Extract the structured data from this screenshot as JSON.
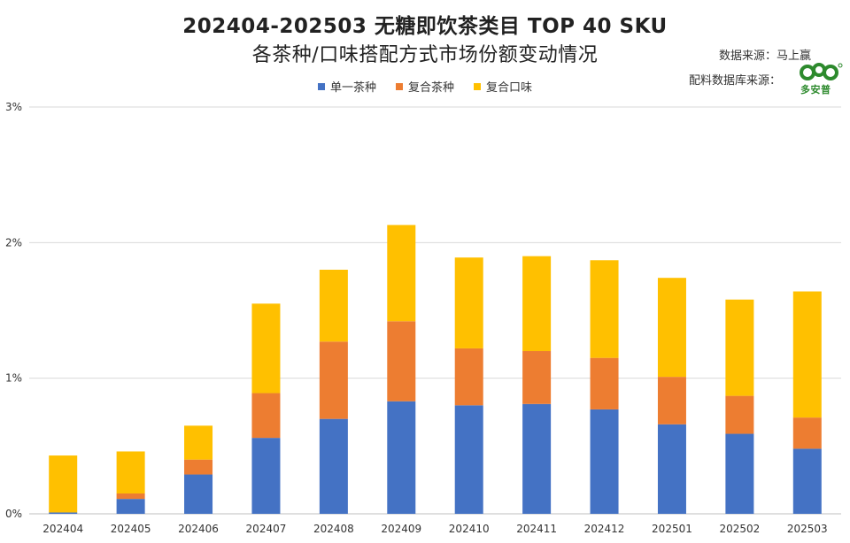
{
  "title": {
    "line1": "202404-202503 无糖即饮茶类目 TOP 40 SKU",
    "line2": "各茶种/口味搭配方式市场份额变动情况"
  },
  "source": {
    "data_source": "数据来源：马上赢",
    "ingredient_source": "配料数据库来源：",
    "logo_text": "多安普"
  },
  "colors": {
    "single": "#4472C4",
    "compound_tea": "#ED7D31",
    "compound_flavor": "#FFC000",
    "grid": "#d9d9d9",
    "logo": "#2d8a2d"
  },
  "chart_data": {
    "type": "bar",
    "stacked": true,
    "categories": [
      "202404",
      "202405",
      "202406",
      "202407",
      "202408",
      "202409",
      "202410",
      "202411",
      "202412",
      "202501",
      "202502",
      "202503"
    ],
    "series": [
      {
        "name": "单一茶种",
        "values": [
          0.01,
          0.11,
          0.29,
          0.56,
          0.7,
          0.83,
          0.8,
          0.81,
          0.77,
          0.66,
          0.59,
          0.48
        ]
      },
      {
        "name": "复合茶种",
        "values": [
          0.0,
          0.04,
          0.11,
          0.33,
          0.57,
          0.59,
          0.42,
          0.39,
          0.38,
          0.35,
          0.28,
          0.23
        ]
      },
      {
        "name": "复合口味",
        "values": [
          0.42,
          0.31,
          0.25,
          0.66,
          0.53,
          0.71,
          0.67,
          0.7,
          0.72,
          0.73,
          0.71,
          0.93
        ]
      }
    ],
    "ylim": [
      0,
      3
    ],
    "yticks": [
      {
        "value": 0,
        "label": "0%"
      },
      {
        "value": 1,
        "label": "1%"
      },
      {
        "value": 2,
        "label": "2%"
      },
      {
        "value": 3,
        "label": "3%"
      }
    ],
    "grid": true,
    "legend_position": "top"
  }
}
